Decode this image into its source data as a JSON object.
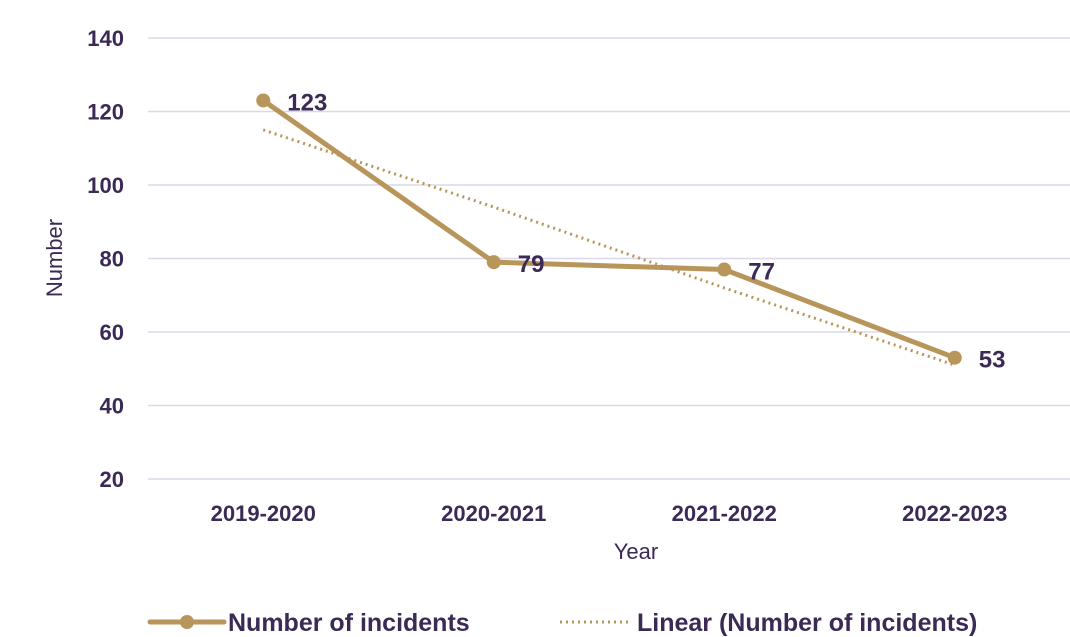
{
  "chart_data": {
    "type": "line",
    "categories": [
      "2019-2020",
      "2020-2021",
      "2021-2022",
      "2022-2023"
    ],
    "series": [
      {
        "name": "Number of incidents",
        "values": [
          123,
          79,
          77,
          53
        ]
      },
      {
        "name": "Linear (Number of incidents)",
        "values": [
          115,
          94,
          72,
          51
        ]
      }
    ],
    "data_labels": [
      "123",
      "79",
      "77",
      "53"
    ],
    "xlabel": "Year",
    "ylabel": "Number",
    "ylim": [
      20,
      140
    ],
    "yticks": [
      "20",
      "40",
      "60",
      "80",
      "100",
      "120",
      "140"
    ],
    "grid": true,
    "legend_position": "bottom",
    "colors": {
      "line": "#b8955a",
      "text": "#3b2a55",
      "grid": "#dcd8ea"
    }
  }
}
